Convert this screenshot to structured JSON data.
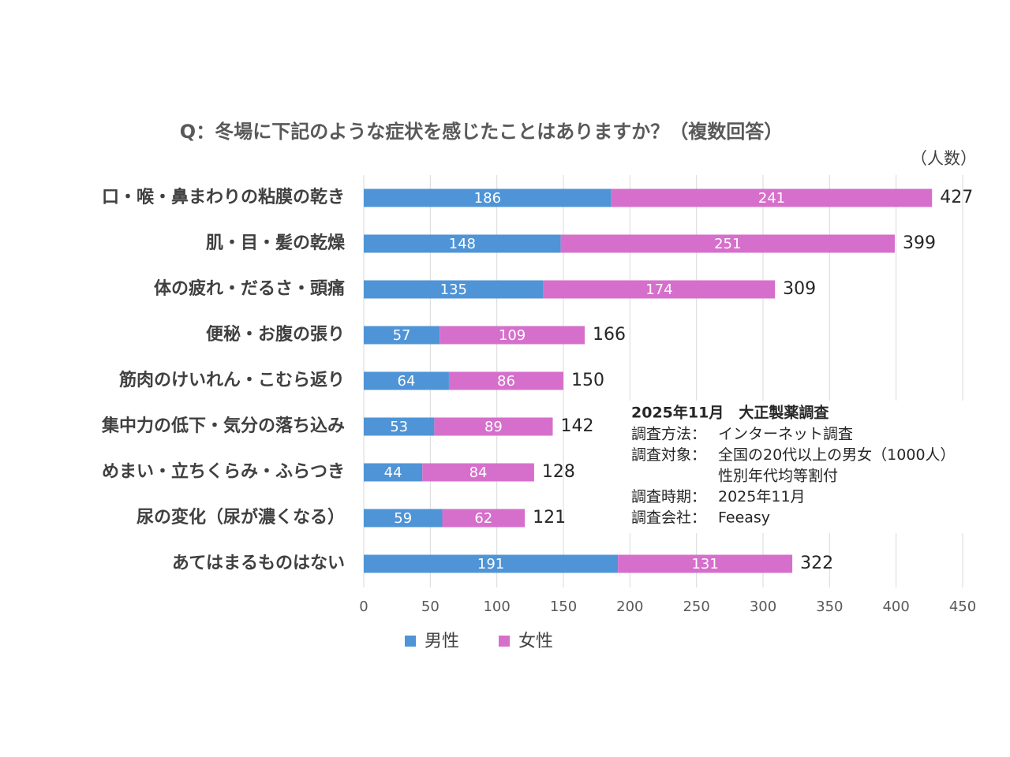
{
  "chart_data": {
    "type": "stacked_barh",
    "title": "Q：冬場に下記のような症状を感じたことはありますか？（複数回答）",
    "unit_label": "（人数）",
    "categories": [
      "口・喉・鼻まわりの粘膜の乾き",
      "肌・目・髪の乾燥",
      "体の疲れ・だるさ・頭痛",
      "便秘・お腹の張り",
      "筋肉のけいれん・こむら返り",
      "集中力の低下・気分の落ち込み",
      "めまい・立ちくらみ・ふらつき",
      "尿の変化（尿が濃くなる）",
      "あてはまるものはない"
    ],
    "series": [
      {
        "name": "男性",
        "color": "#4f94d6",
        "values": [
          186,
          148,
          135,
          57,
          64,
          53,
          44,
          59,
          191
        ]
      },
      {
        "name": "女性",
        "color": "#d66fcb",
        "values": [
          241,
          251,
          174,
          109,
          86,
          89,
          84,
          62,
          131
        ]
      }
    ],
    "totals": [
      427,
      399,
      309,
      166,
      150,
      142,
      128,
      121,
      322
    ],
    "xlim": [
      0,
      450
    ],
    "xticks": [
      0,
      50,
      100,
      150,
      200,
      250,
      300,
      350,
      400,
      450
    ],
    "grid": true,
    "legend": "bottom",
    "annotation": {
      "title": "2025年11月　大正製薬調査",
      "rows": [
        {
          "label": "調査方法：",
          "text": "インターネット調査"
        },
        {
          "label": "調査対象：",
          "text": "全国の20代以上の男女（1000人）"
        },
        {
          "text": "性別年代均等割付"
        },
        {
          "label": "調査時期：",
          "text": "2025年11月"
        },
        {
          "label": "調査会社：",
          "text": "Feeasy"
        }
      ]
    }
  }
}
